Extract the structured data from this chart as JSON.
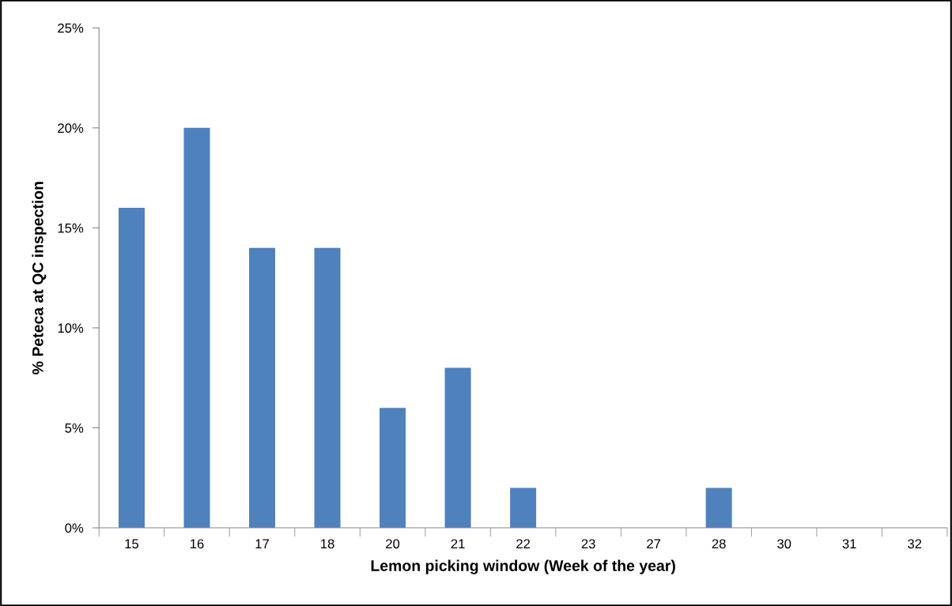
{
  "chart_data": {
    "type": "bar",
    "xlabel": "Lemon picking window (Week of the year)",
    "ylabel": "% Peteca at QC inspection",
    "categories": [
      "15",
      "16",
      "17",
      "18",
      "20",
      "21",
      "22",
      "23",
      "27",
      "28",
      "30",
      "31",
      "32"
    ],
    "values": [
      16,
      20,
      14,
      14,
      6,
      8,
      2,
      0,
      0,
      2,
      0,
      0,
      0
    ],
    "color": "#4f81bd",
    "ylim": [
      0,
      25
    ],
    "yticks": [
      {
        "value": 0,
        "label": "0%"
      },
      {
        "value": 5,
        "label": "5%"
      },
      {
        "value": 10,
        "label": "10%"
      },
      {
        "value": 15,
        "label": "15%"
      },
      {
        "value": 20,
        "label": "20%"
      },
      {
        "value": 25,
        "label": "25%"
      }
    ],
    "grid": false,
    "legend": false
  }
}
